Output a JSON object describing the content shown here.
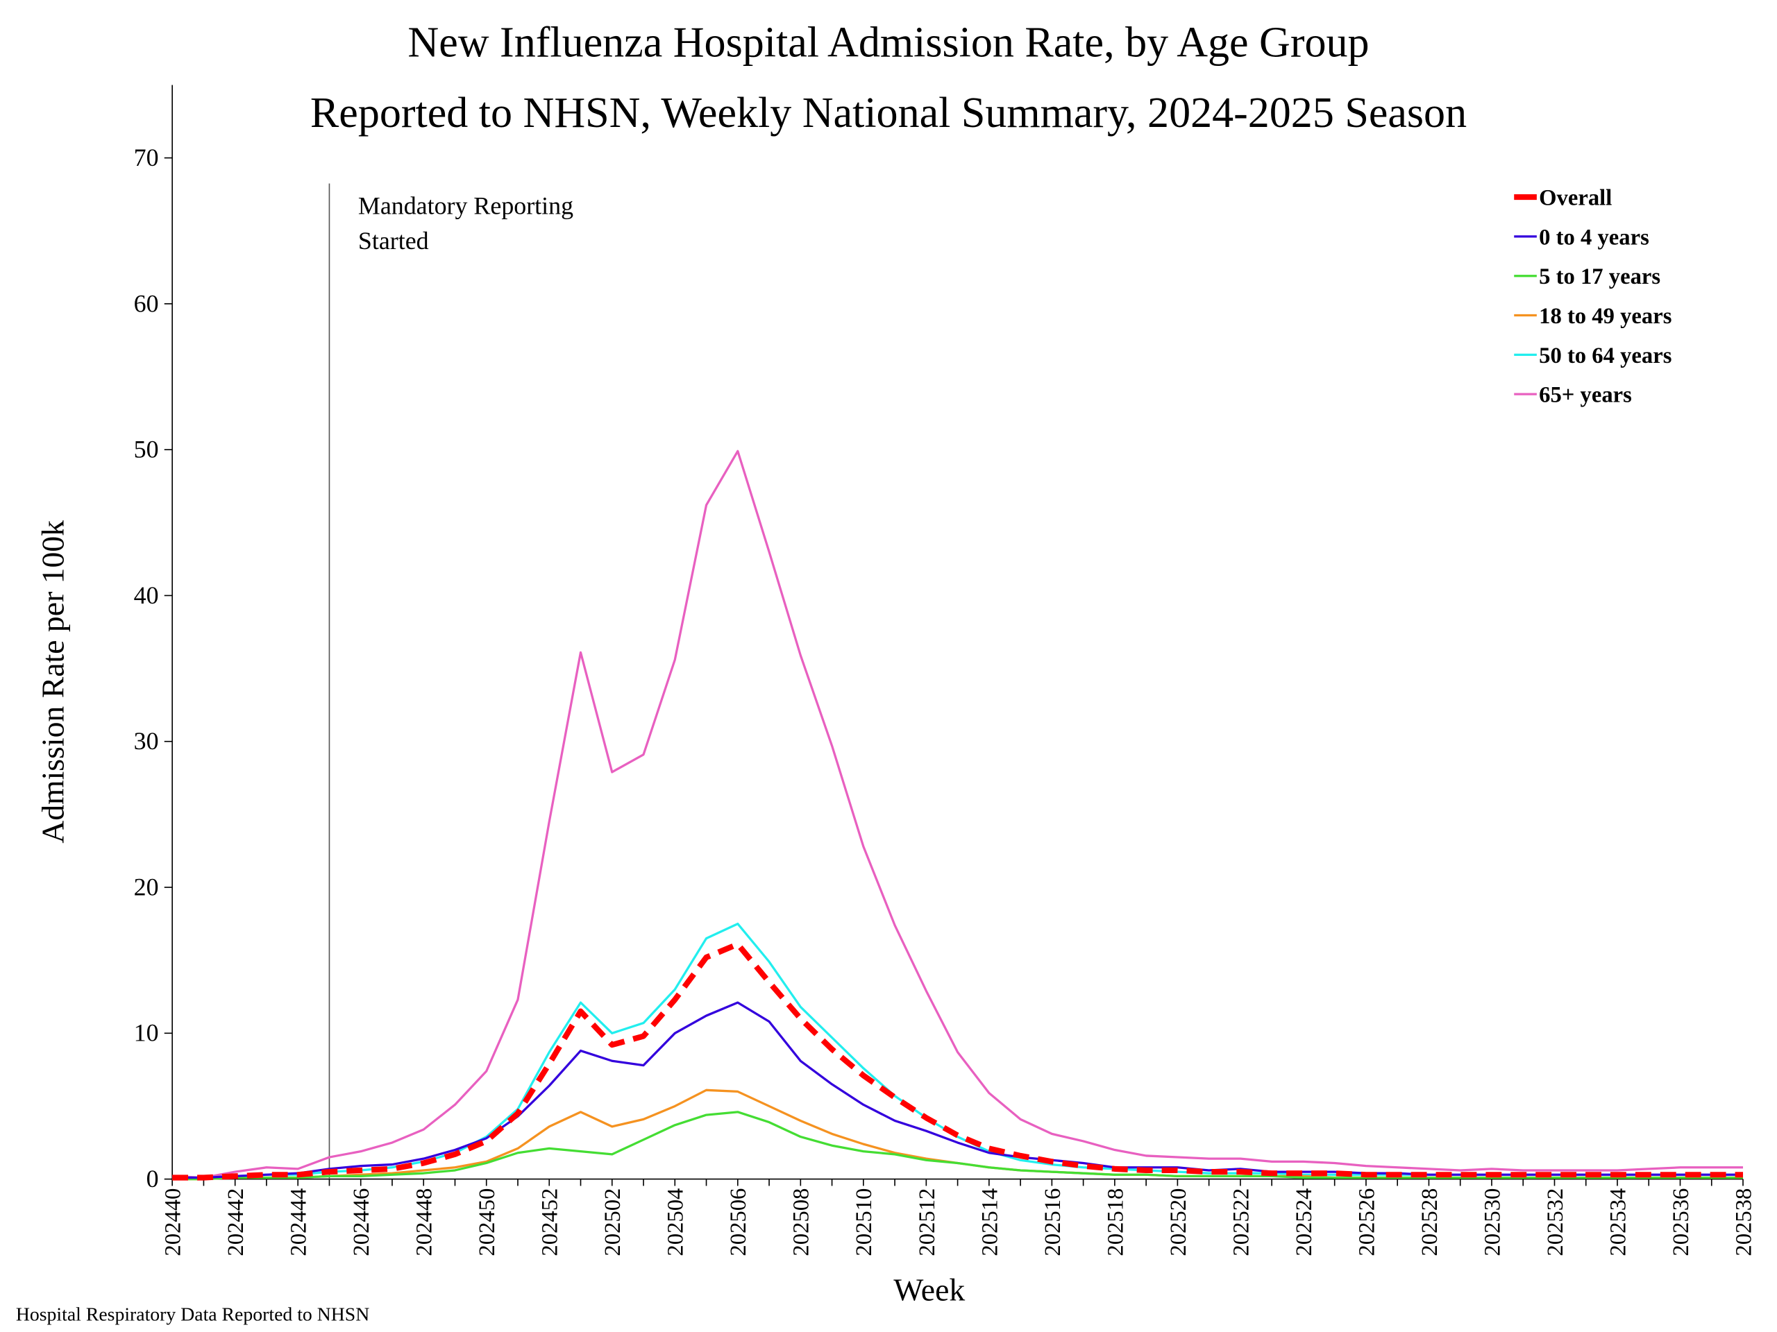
{
  "chart_data": {
    "type": "line",
    "title": [
      "New Influenza Hospital Admission Rate, by Age Group",
      "Reported to NHSN, Weekly National Summary, 2024-2025 Season"
    ],
    "x_label": "Week",
    "y_label": "Admission Rate per 100k",
    "annotation": [
      "Mandatory Reporting",
      "Started"
    ],
    "footer": "Hospital Respiratory Data Reported to NHSN",
    "categories": [
      "202440",
      null,
      "202442",
      null,
      "202444",
      null,
      "202446",
      null,
      "202448",
      null,
      "202450",
      null,
      "202452",
      null,
      "202502",
      null,
      "202504",
      null,
      "202506",
      null,
      "202508",
      null,
      "202510",
      null,
      "202512",
      null,
      "202514",
      null,
      "202516",
      null,
      "202518",
      null,
      "202520",
      null,
      "202522",
      null,
      "202524",
      null,
      "202526",
      null,
      "202528",
      null,
      "202530",
      null,
      "202532",
      null,
      "202534",
      null,
      "202536",
      null,
      "202538"
    ],
    "ylim": [
      0,
      75
    ],
    "yticks": [
      0,
      10,
      20,
      30,
      40,
      50,
      60,
      70
    ],
    "grid": false,
    "legend": "upper right",
    "series": [
      {
        "name": "Overall",
        "color": "#ff0000",
        "dashed": true,
        "values": [
          0.1,
          0.1,
          0.2,
          0.3,
          0.3,
          0.5,
          0.6,
          0.7,
          1.1,
          1.7,
          2.6,
          4.5,
          7.9,
          11.5,
          9.2,
          9.8,
          12.3,
          15.2,
          16.1,
          13.5,
          11.0,
          8.9,
          7.1,
          5.6,
          4.2,
          3.0,
          2.1,
          1.6,
          1.2,
          0.9,
          0.7,
          0.6,
          0.6,
          0.5,
          0.5,
          0.4,
          0.4,
          0.4,
          0.3,
          0.3,
          0.3,
          0.3,
          0.3,
          0.3,
          0.3,
          0.3,
          0.3,
          0.3,
          0.3,
          0.3,
          0.3
        ]
      },
      {
        "name": "0 to 4 years",
        "color": "#3300dd",
        "values": [
          0.1,
          0.1,
          0.2,
          0.3,
          0.4,
          0.7,
          0.9,
          1.0,
          1.4,
          2.0,
          2.8,
          4.3,
          6.4,
          8.8,
          8.1,
          7.8,
          10.0,
          11.2,
          12.1,
          10.8,
          8.1,
          6.5,
          5.1,
          4.0,
          3.3,
          2.5,
          1.8,
          1.5,
          1.3,
          1.1,
          0.8,
          0.8,
          0.8,
          0.6,
          0.7,
          0.5,
          0.5,
          0.5,
          0.4,
          0.4,
          0.3,
          0.3,
          0.3,
          0.3,
          0.3,
          0.3,
          0.3,
          0.3,
          0.3,
          0.3,
          0.3
        ]
      },
      {
        "name": "5 to 17 years",
        "color": "#44dd33",
        "values": [
          0.0,
          0.0,
          0.1,
          0.1,
          0.1,
          0.2,
          0.2,
          0.3,
          0.4,
          0.6,
          1.1,
          1.8,
          2.1,
          1.9,
          1.7,
          2.7,
          3.7,
          4.4,
          4.6,
          3.9,
          2.9,
          2.3,
          1.9,
          1.7,
          1.3,
          1.1,
          0.8,
          0.6,
          0.5,
          0.4,
          0.3,
          0.3,
          0.2,
          0.2,
          0.2,
          0.2,
          0.1,
          0.1,
          0.1,
          0.1,
          0.1,
          0.1,
          0.1,
          0.1,
          0.1,
          0.1,
          0.1,
          0.1,
          0.1,
          0.1,
          0.1
        ]
      },
      {
        "name": "18 to 49 years",
        "color": "#f59220",
        "values": [
          0.0,
          0.0,
          0.1,
          0.1,
          0.1,
          0.2,
          0.3,
          0.4,
          0.6,
          0.8,
          1.2,
          2.1,
          3.6,
          4.6,
          3.6,
          4.1,
          5.0,
          6.1,
          6.0,
          5.0,
          4.0,
          3.1,
          2.4,
          1.8,
          1.4,
          1.1,
          0.8,
          0.6,
          0.5,
          0.4,
          0.3,
          0.3,
          0.2,
          0.2,
          0.2,
          0.2,
          0.2,
          0.1,
          0.1,
          0.1,
          0.1,
          0.1,
          0.1,
          0.1,
          0.1,
          0.1,
          0.1,
          0.1,
          0.1,
          0.1,
          0.1
        ]
      },
      {
        "name": "50 to 64 years",
        "color": "#22eeee",
        "values": [
          0.1,
          0.1,
          0.2,
          0.3,
          0.3,
          0.5,
          0.6,
          0.8,
          1.2,
          1.8,
          2.9,
          4.8,
          8.7,
          12.1,
          10.0,
          10.7,
          13.0,
          16.5,
          17.5,
          14.9,
          11.8,
          9.7,
          7.6,
          5.7,
          4.2,
          2.9,
          1.9,
          1.3,
          1.0,
          0.8,
          0.7,
          0.6,
          0.5,
          0.4,
          0.4,
          0.4,
          0.3,
          0.3,
          0.3,
          0.3,
          0.3,
          0.3,
          0.3,
          0.3,
          0.3,
          0.3,
          0.3,
          0.3,
          0.3,
          0.3,
          0.3
        ]
      },
      {
        "name": "65+ years",
        "color": "#e860c0",
        "values": [
          0.2,
          0.1,
          0.5,
          0.8,
          0.7,
          1.5,
          1.9,
          2.5,
          3.4,
          5.1,
          7.4,
          12.3,
          24.5,
          36.1,
          27.9,
          29.1,
          35.6,
          46.2,
          49.9,
          43.0,
          35.9,
          29.7,
          22.8,
          17.4,
          12.9,
          8.7,
          5.9,
          4.1,
          3.1,
          2.6,
          2.0,
          1.6,
          1.5,
          1.4,
          1.4,
          1.2,
          1.2,
          1.1,
          0.9,
          0.8,
          0.7,
          0.6,
          0.7,
          0.6,
          0.6,
          0.6,
          0.6,
          0.7,
          0.8,
          0.8,
          0.8
        ]
      }
    ]
  }
}
